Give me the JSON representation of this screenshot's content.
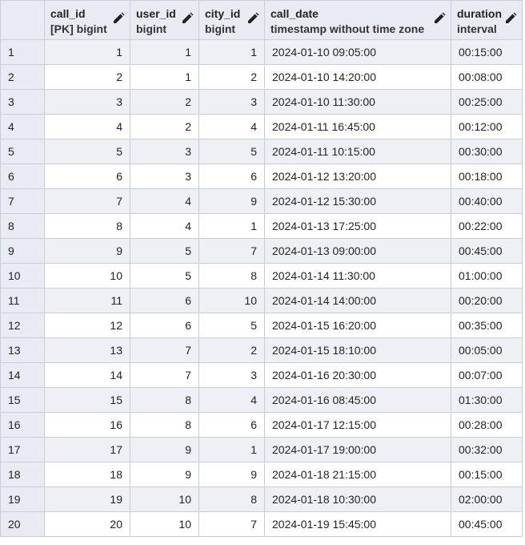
{
  "columns": [
    {
      "name": "call_id",
      "type": "[PK] bigint",
      "align": "num"
    },
    {
      "name": "user_id",
      "type": "bigint",
      "align": "num"
    },
    {
      "name": "city_id",
      "type": "bigint",
      "align": "num"
    },
    {
      "name": "call_date",
      "type": "timestamp without time zone",
      "align": "txt"
    },
    {
      "name": "duration",
      "type": "interval",
      "align": "txt"
    }
  ],
  "rows": [
    [
      "1",
      "1",
      "1",
      "2024-01-10 09:05:00",
      "00:15:00"
    ],
    [
      "2",
      "1",
      "2",
      "2024-01-10 14:20:00",
      "00:08:00"
    ],
    [
      "3",
      "2",
      "3",
      "2024-01-10 11:30:00",
      "00:25:00"
    ],
    [
      "4",
      "2",
      "4",
      "2024-01-11 16:45:00",
      "00:12:00"
    ],
    [
      "5",
      "3",
      "5",
      "2024-01-11 10:15:00",
      "00:30:00"
    ],
    [
      "6",
      "3",
      "6",
      "2024-01-12 13:20:00",
      "00:18:00"
    ],
    [
      "7",
      "4",
      "9",
      "2024-01-12 15:30:00",
      "00:40:00"
    ],
    [
      "8",
      "4",
      "1",
      "2024-01-13 17:25:00",
      "00:22:00"
    ],
    [
      "9",
      "5",
      "7",
      "2024-01-13 09:00:00",
      "00:45:00"
    ],
    [
      "10",
      "5",
      "8",
      "2024-01-14 11:30:00",
      "01:00:00"
    ],
    [
      "11",
      "6",
      "10",
      "2024-01-14 14:00:00",
      "00:20:00"
    ],
    [
      "12",
      "6",
      "5",
      "2024-01-15 16:20:00",
      "00:35:00"
    ],
    [
      "13",
      "7",
      "2",
      "2024-01-15 18:10:00",
      "00:05:00"
    ],
    [
      "14",
      "7",
      "3",
      "2024-01-16 20:30:00",
      "00:07:00"
    ],
    [
      "15",
      "8",
      "4",
      "2024-01-16 08:45:00",
      "01:30:00"
    ],
    [
      "16",
      "8",
      "6",
      "2024-01-17 12:15:00",
      "00:28:00"
    ],
    [
      "17",
      "9",
      "1",
      "2024-01-17 19:00:00",
      "00:32:00"
    ],
    [
      "18",
      "9",
      "9",
      "2024-01-18 21:15:00",
      "00:15:00"
    ],
    [
      "19",
      "10",
      "8",
      "2024-01-18 10:30:00",
      "02:00:00"
    ],
    [
      "20",
      "10",
      "7",
      "2024-01-19 15:45:00",
      "00:45:00"
    ]
  ],
  "icons": {
    "edit": "pencil-icon"
  },
  "colors": {
    "header_bg": "#e8ebf1",
    "row_alt_bg": "#eef0f5",
    "border": "#c8ccd4"
  }
}
